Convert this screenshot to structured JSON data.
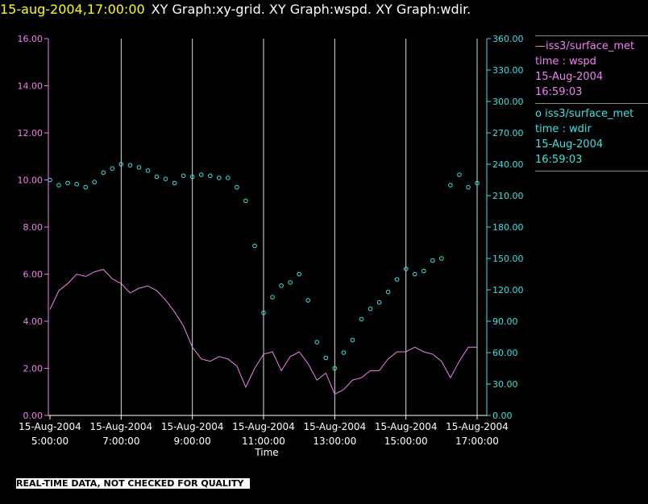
{
  "header": {
    "datetime": "15-aug-2004,17:00:00",
    "graphs": "XY Graph:xy-grid.  XY Graph:wspd.  XY Graph:wdir."
  },
  "legend": {
    "wspd": {
      "name": "iss3/surface_met",
      "field": "time : wspd",
      "date": "15-Aug-2004",
      "time": "16:59:03"
    },
    "wdir": {
      "name": "iss3/surface_met",
      "field": "time : wdir",
      "date": "15-Aug-2004",
      "time": "16:59:03"
    }
  },
  "banner": "REAL-TIME DATA, NOT CHECKED FOR QUALITY",
  "colors": {
    "background": "#000000",
    "wspd": "#ee82ee",
    "wdir": "#40e0e0",
    "grid": "#dddddd",
    "axis": "#ffffff",
    "header_date": "#ffff00"
  },
  "chart_data": {
    "type": "line",
    "xlabel": "Time",
    "grid": true,
    "legend_position": "right",
    "x_ticks": [
      {
        "time": "05:00",
        "date": "15-Aug-2004",
        "label": "5:00:00"
      },
      {
        "time": "07:00",
        "date": "15-Aug-2004",
        "label": "7:00:00"
      },
      {
        "time": "09:00",
        "date": "15-Aug-2004",
        "label": "9:00:00"
      },
      {
        "time": "11:00",
        "date": "15-Aug-2004",
        "label": "11:00:00"
      },
      {
        "time": "13:00",
        "date": "15-Aug-2004",
        "label": "13:00:00"
      },
      {
        "time": "15:00",
        "date": "15-Aug-2004",
        "label": "15:00:00"
      },
      {
        "time": "17:00",
        "date": "15-Aug-2004",
        "label": "17:00:00"
      }
    ],
    "xlim": [
      "05:00",
      "17:00"
    ],
    "y_left": {
      "ticks": [
        "0.00",
        "2.00",
        "4.00",
        "6.00",
        "8.00",
        "10.00",
        "12.00",
        "14.00",
        "16.00"
      ],
      "range": [
        0,
        16
      ]
    },
    "y_right": {
      "ticks": [
        "0.00",
        "30.00",
        "60.00",
        "90.00",
        "120.00",
        "150.00",
        "180.00",
        "210.00",
        "240.00",
        "270.00",
        "300.00",
        "330.00",
        "360.00"
      ],
      "range": [
        0,
        360
      ]
    },
    "series": [
      {
        "name": "iss3/surface_met time : wspd",
        "style": "line",
        "axis": "left",
        "points": [
          [
            "05:00",
            4.5
          ],
          [
            "05:15",
            5.3
          ],
          [
            "05:30",
            5.6
          ],
          [
            "05:45",
            6.0
          ],
          [
            "06:00",
            5.9
          ],
          [
            "06:15",
            6.1
          ],
          [
            "06:30",
            6.2
          ],
          [
            "06:45",
            5.8
          ],
          [
            "07:00",
            5.6
          ],
          [
            "07:15",
            5.2
          ],
          [
            "07:30",
            5.4
          ],
          [
            "07:45",
            5.5
          ],
          [
            "08:00",
            5.3
          ],
          [
            "08:15",
            4.9
          ],
          [
            "08:30",
            4.4
          ],
          [
            "08:45",
            3.8
          ],
          [
            "09:00",
            2.9
          ],
          [
            "09:15",
            2.4
          ],
          [
            "09:30",
            2.3
          ],
          [
            "09:45",
            2.5
          ],
          [
            "10:00",
            2.4
          ],
          [
            "10:15",
            2.1
          ],
          [
            "10:30",
            1.2
          ],
          [
            "10:45",
            2.0
          ],
          [
            "11:00",
            2.6
          ],
          [
            "11:15",
            2.7
          ],
          [
            "11:30",
            1.9
          ],
          [
            "11:45",
            2.5
          ],
          [
            "12:00",
            2.7
          ],
          [
            "12:15",
            2.2
          ],
          [
            "12:30",
            1.5
          ],
          [
            "12:45",
            1.8
          ],
          [
            "13:00",
            0.9
          ],
          [
            "13:15",
            1.1
          ],
          [
            "13:30",
            1.5
          ],
          [
            "13:45",
            1.6
          ],
          [
            "14:00",
            1.9
          ],
          [
            "14:15",
            1.9
          ],
          [
            "14:30",
            2.4
          ],
          [
            "14:45",
            2.7
          ],
          [
            "15:00",
            2.7
          ],
          [
            "15:15",
            2.9
          ],
          [
            "15:30",
            2.7
          ],
          [
            "15:45",
            2.6
          ],
          [
            "16:00",
            2.3
          ],
          [
            "16:15",
            1.6
          ],
          [
            "16:30",
            2.3
          ],
          [
            "16:45",
            2.9
          ],
          [
            "17:00",
            2.9
          ]
        ]
      },
      {
        "name": "iss3/surface_met time : wdir",
        "style": "circles",
        "axis": "right",
        "points": [
          [
            "05:00",
            225
          ],
          [
            "05:15",
            220
          ],
          [
            "05:30",
            222
          ],
          [
            "05:45",
            221
          ],
          [
            "06:00",
            218
          ],
          [
            "06:15",
            223
          ],
          [
            "06:30",
            232
          ],
          [
            "06:45",
            236
          ],
          [
            "07:00",
            240
          ],
          [
            "07:15",
            239
          ],
          [
            "07:30",
            237
          ],
          [
            "07:45",
            234
          ],
          [
            "08:00",
            228
          ],
          [
            "08:15",
            226
          ],
          [
            "08:30",
            222
          ],
          [
            "08:45",
            229
          ],
          [
            "09:00",
            228
          ],
          [
            "09:15",
            230
          ],
          [
            "09:30",
            229
          ],
          [
            "09:45",
            227
          ],
          [
            "10:00",
            227
          ],
          [
            "10:15",
            218
          ],
          [
            "10:30",
            205
          ],
          [
            "10:45",
            162
          ],
          [
            "11:00",
            98
          ],
          [
            "11:15",
            113
          ],
          [
            "11:30",
            124
          ],
          [
            "11:45",
            127
          ],
          [
            "12:00",
            135
          ],
          [
            "12:15",
            110
          ],
          [
            "12:30",
            70
          ],
          [
            "12:45",
            55
          ],
          [
            "13:00",
            45
          ],
          [
            "13:15",
            60
          ],
          [
            "13:30",
            72
          ],
          [
            "13:45",
            92
          ],
          [
            "14:00",
            102
          ],
          [
            "14:15",
            108
          ],
          [
            "14:30",
            118
          ],
          [
            "14:45",
            130
          ],
          [
            "15:00",
            140
          ],
          [
            "15:15",
            135
          ],
          [
            "15:30",
            138
          ],
          [
            "15:45",
            148
          ],
          [
            "16:00",
            150
          ],
          [
            "16:15",
            220
          ],
          [
            "16:30",
            230
          ],
          [
            "16:45",
            218
          ],
          [
            "17:00",
            222
          ]
        ]
      }
    ]
  }
}
